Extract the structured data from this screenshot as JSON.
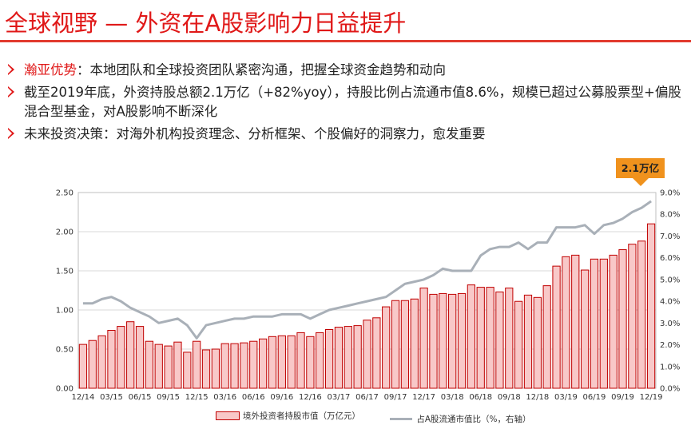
{
  "header": {
    "title": "全球视野 — 外资在A股影响力日益提升"
  },
  "bullets": [
    {
      "highlight": "瀚亚优势",
      "text": "：本地团队和全球投资团队紧密沟通，把握全球资金趋势和动向"
    },
    {
      "highlight": "",
      "text": "截至2019年底，外资持股总额2.1万亿（+82%yoy），持股比例占流通市值8.6%，规模已超过公募股票型+偏股混合型基金，对A股影响不断深化"
    },
    {
      "highlight": "",
      "text": "未来投资决策：对海外机构投资理念、分析框架、个股偏好的洞察力，愈发重要"
    }
  ],
  "callout": {
    "text": "2.1万亿"
  },
  "colors": {
    "bar_fill": "#f8c8c8",
    "bar_stroke": "#c00000",
    "line": "#a9b0b8",
    "accent": "#e01818",
    "callout": "#f0921d"
  },
  "chart_data": {
    "type": "bar",
    "x": [
      "12/14",
      "01/15",
      "02/15",
      "03/15",
      "04/15",
      "05/15",
      "06/15",
      "07/15",
      "08/15",
      "09/15",
      "10/15",
      "11/15",
      "12/15",
      "01/16",
      "02/16",
      "03/16",
      "04/16",
      "05/16",
      "06/16",
      "07/16",
      "08/16",
      "09/16",
      "10/16",
      "11/16",
      "12/16",
      "01/17",
      "02/17",
      "03/17",
      "04/17",
      "05/17",
      "06/17",
      "07/17",
      "08/17",
      "09/17",
      "10/17",
      "11/17",
      "12/17",
      "01/18",
      "02/18",
      "03/18",
      "04/18",
      "05/18",
      "06/18",
      "07/18",
      "08/18",
      "09/18",
      "10/18",
      "11/18",
      "12/18",
      "01/19",
      "02/19",
      "03/19",
      "04/19",
      "05/19",
      "06/19",
      "07/19",
      "08/19",
      "09/19",
      "10/19",
      "11/19",
      "12/19"
    ],
    "x_tick_labels": [
      "12/14",
      "03/15",
      "06/15",
      "09/15",
      "12/15",
      "03/16",
      "06/16",
      "09/16",
      "12/16",
      "03/17",
      "06/17",
      "09/17",
      "12/17",
      "03/18",
      "06/18",
      "09/18",
      "12/18",
      "03/19",
      "06/19",
      "09/19",
      "12/19"
    ],
    "series": [
      {
        "name": "境外投资者持股市值（万亿元）",
        "axis": "left",
        "type": "bar",
        "values": [
          0.56,
          0.61,
          0.67,
          0.74,
          0.79,
          0.85,
          0.79,
          0.6,
          0.56,
          0.54,
          0.59,
          0.46,
          0.6,
          0.49,
          0.5,
          0.57,
          0.57,
          0.58,
          0.6,
          0.63,
          0.66,
          0.67,
          0.67,
          0.71,
          0.66,
          0.71,
          0.75,
          0.78,
          0.79,
          0.8,
          0.87,
          0.9,
          1.04,
          1.12,
          1.12,
          1.14,
          1.28,
          1.2,
          1.21,
          1.2,
          1.21,
          1.32,
          1.29,
          1.29,
          1.23,
          1.28,
          1.11,
          1.19,
          1.16,
          1.31,
          1.56,
          1.68,
          1.7,
          1.51,
          1.65,
          1.65,
          1.7,
          1.77,
          1.84,
          1.88,
          2.1
        ]
      },
      {
        "name": "占A股流通市值比（%，右轴）",
        "axis": "right",
        "type": "line",
        "values": [
          3.9,
          3.9,
          4.1,
          4.2,
          4.0,
          3.7,
          3.5,
          3.3,
          3.0,
          3.1,
          3.2,
          2.9,
          2.3,
          2.9,
          3.0,
          3.1,
          3.2,
          3.2,
          3.3,
          3.3,
          3.3,
          3.4,
          3.4,
          3.4,
          3.2,
          3.4,
          3.6,
          3.7,
          3.8,
          3.9,
          4.0,
          4.1,
          4.2,
          4.5,
          4.8,
          4.9,
          5.0,
          5.2,
          5.5,
          5.4,
          5.4,
          5.4,
          6.1,
          6.4,
          6.5,
          6.5,
          6.7,
          6.4,
          6.7,
          6.7,
          7.4,
          7.4,
          7.4,
          7.5,
          7.1,
          7.5,
          7.6,
          7.8,
          8.1,
          8.3,
          8.6
        ]
      }
    ],
    "y_left": {
      "min": 0,
      "max": 2.5,
      "ticks": [
        "0.00",
        "0.50",
        "1.00",
        "1.50",
        "2.00",
        "2.50"
      ]
    },
    "y_right": {
      "min": 0,
      "max": 9,
      "ticks": [
        "0.0%",
        "1.0%",
        "2.0%",
        "3.0%",
        "4.0%",
        "5.0%",
        "6.0%",
        "7.0%",
        "8.0%",
        "9.0%"
      ]
    },
    "legend_position": "bottom",
    "grid": true
  },
  "legend": {
    "bar_label": "境外投资者持股市值（万亿元）",
    "line_label": "占A股流通市值比（%，右轴）"
  }
}
